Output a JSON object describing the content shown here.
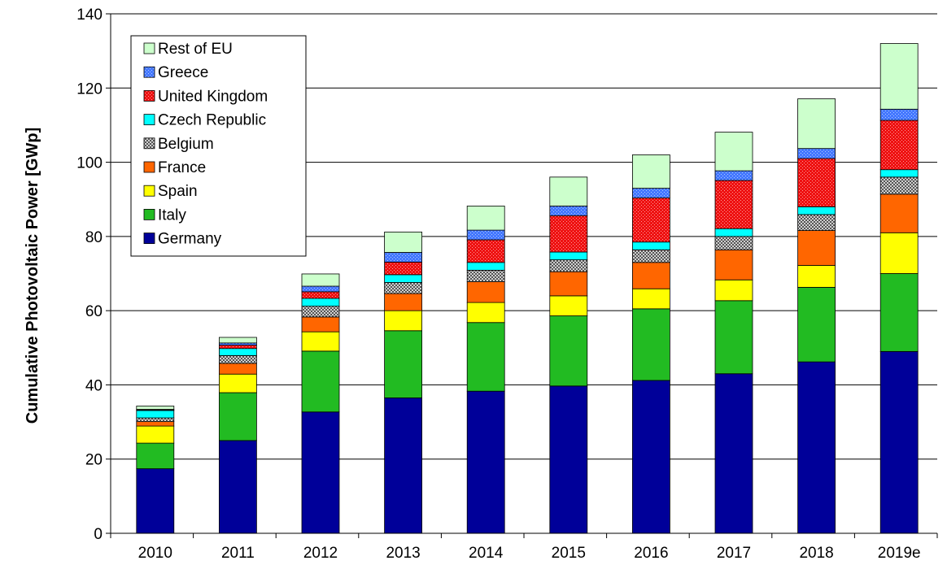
{
  "chart_data": {
    "type": "bar",
    "stacked": true,
    "title": "",
    "xlabel": "",
    "ylabel": "Cumulative Photovoltaic Power [GWp]",
    "ylim": [
      0,
      140
    ],
    "yticks": [
      0,
      20,
      40,
      60,
      80,
      100,
      120,
      140
    ],
    "grid": true,
    "legend_position": "top-left",
    "categories": [
      "2010",
      "2011",
      "2012",
      "2013",
      "2014",
      "2015",
      "2016",
      "2017",
      "2018",
      "2019e"
    ],
    "series": [
      {
        "name": "Germany",
        "color": "#000099",
        "pattern": "solid",
        "values": [
          17.4,
          25.0,
          32.7,
          36.5,
          38.3,
          39.7,
          41.2,
          43.0,
          46.2,
          49.0
        ]
      },
      {
        "name": "Italy",
        "color": "#22bb22",
        "pattern": "solid",
        "values": [
          6.9,
          12.9,
          16.4,
          18.1,
          18.5,
          18.9,
          19.3,
          19.7,
          20.1,
          21.0
        ]
      },
      {
        "name": "Spain",
        "color": "#ffff00",
        "pattern": "solid",
        "values": [
          4.6,
          5.0,
          5.2,
          5.4,
          5.4,
          5.4,
          5.4,
          5.6,
          5.9,
          11.0
        ]
      },
      {
        "name": "France",
        "color": "#ff6600",
        "pattern": "solid",
        "values": [
          1.2,
          2.9,
          4.0,
          4.6,
          5.6,
          6.5,
          7.1,
          8.1,
          9.4,
          10.4
        ]
      },
      {
        "name": "Belgium",
        "color": "#888888",
        "pattern": "checker",
        "values": [
          1.0,
          2.1,
          2.9,
          3.0,
          3.1,
          3.2,
          3.4,
          3.6,
          4.3,
          4.6
        ]
      },
      {
        "name": "Czech Republic",
        "color": "#00ffff",
        "pattern": "solid",
        "values": [
          2.0,
          1.9,
          2.1,
          2.1,
          2.1,
          2.1,
          2.1,
          2.1,
          2.1,
          2.0
        ]
      },
      {
        "name": "United Kingdom",
        "color": "#ee1111",
        "pattern": "dots",
        "values": [
          0.1,
          0.9,
          1.8,
          3.4,
          6.1,
          9.8,
          11.9,
          13.0,
          13.0,
          13.3
        ]
      },
      {
        "name": "Greece",
        "color": "#4477ff",
        "pattern": "dots",
        "values": [
          0.2,
          0.6,
          1.5,
          2.6,
          2.6,
          2.6,
          2.6,
          2.6,
          2.7,
          3.0
        ]
      },
      {
        "name": "Rest of EU",
        "color": "#ccffcc",
        "pattern": "solid",
        "values": [
          0.9,
          1.5,
          3.3,
          5.5,
          6.5,
          7.8,
          9.0,
          10.4,
          13.4,
          17.7
        ]
      }
    ]
  }
}
